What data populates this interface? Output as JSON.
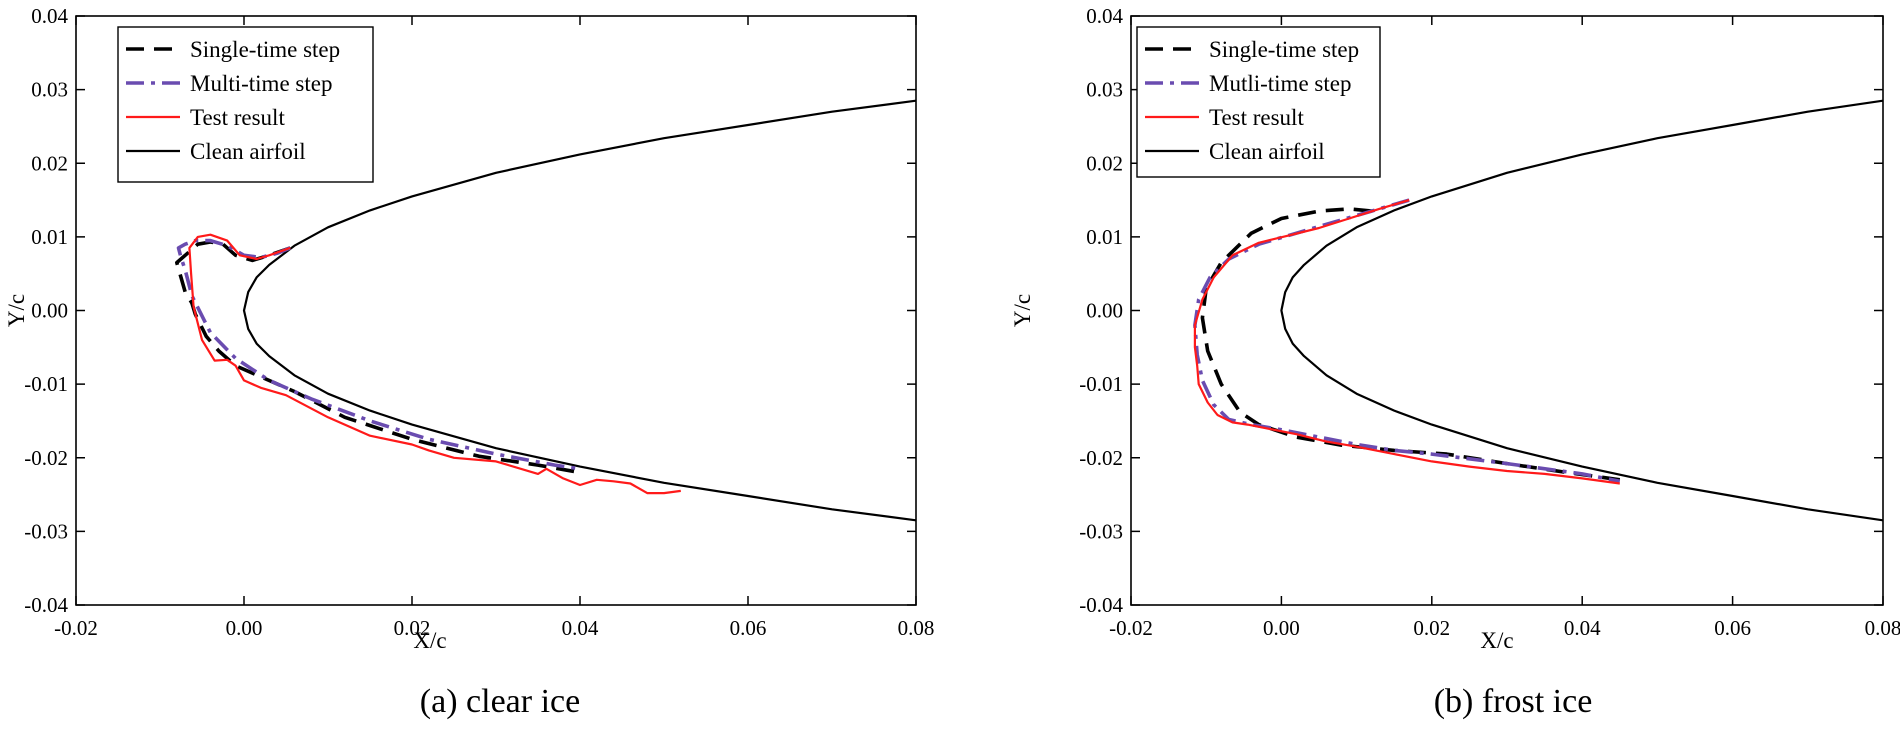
{
  "chart_data": [
    {
      "type": "line",
      "caption": "(a) clear ice",
      "xlabel": "X/c",
      "ylabel": "Y/c",
      "xlim": [
        -0.02,
        0.08
      ],
      "ylim": [
        -0.04,
        0.04
      ],
      "xticks": [
        -0.02,
        0.0,
        0.02,
        0.04,
        0.06,
        0.08
      ],
      "xtick_labels": [
        "-0.02",
        "0.00",
        "0.02",
        "0.04",
        "0.06",
        "0.08"
      ],
      "yticks": [
        0.04,
        0.03,
        0.02,
        0.01,
        0.0,
        -0.01,
        -0.02,
        -0.03,
        -0.04
      ],
      "ytick_labels": [
        "0.04",
        "0.03",
        "0.02",
        "0.01",
        "0.00",
        "-0.01",
        "-0.02",
        "-0.03",
        "-0.04"
      ],
      "legend_position": "top-left",
      "series": [
        {
          "name": "Single-time step",
          "style": "dash",
          "color": "#000000",
          "x": [
            0.0055,
            0.003,
            0.001,
            -0.001,
            -0.0025,
            -0.004,
            -0.0055,
            -0.007,
            -0.008,
            -0.0075,
            -0.007,
            -0.0062,
            -0.0058,
            -0.0045,
            -0.003,
            -0.001,
            0.002,
            0.006,
            0.012,
            0.02,
            0.028,
            0.035,
            0.04
          ],
          "y": [
            0.0085,
            0.0075,
            0.0068,
            0.0075,
            0.009,
            0.0093,
            0.009,
            0.0075,
            0.0065,
            0.0045,
            0.0025,
            0.001,
            -0.0005,
            -0.0035,
            -0.0055,
            -0.0075,
            -0.009,
            -0.011,
            -0.0145,
            -0.0175,
            -0.0198,
            -0.021,
            -0.022
          ]
        },
        {
          "name": "Multi-time step",
          "style": "dash-dot",
          "color": "#6a4cb0",
          "x": [
            0.0055,
            0.004,
            0.002,
            0.0,
            -0.002,
            -0.004,
            -0.0058,
            -0.007,
            -0.0078,
            -0.0075,
            -0.007,
            -0.0062,
            -0.004,
            -0.001,
            0.003,
            0.008,
            0.015,
            0.022,
            0.03,
            0.037,
            0.04
          ],
          "y": [
            0.0085,
            0.0078,
            0.0072,
            0.0075,
            0.0088,
            0.0095,
            0.0095,
            0.009,
            0.0085,
            0.0072,
            0.0055,
            0.002,
            -0.003,
            -0.0065,
            -0.0095,
            -0.012,
            -0.015,
            -0.0175,
            -0.0195,
            -0.021,
            -0.0215
          ]
        },
        {
          "name": "Test result",
          "style": "solid",
          "color": "#ff1a1a",
          "x": [
            0.0055,
            0.003,
            0.0015,
            -0.0005,
            -0.002,
            -0.004,
            -0.0055,
            -0.0065,
            -0.0063,
            -0.006,
            -0.005,
            -0.0035,
            -0.002,
            -0.001,
            0.0,
            0.002,
            0.005,
            0.01,
            0.015,
            0.02,
            0.022,
            0.025,
            0.03,
            0.035,
            0.036,
            0.038,
            0.04,
            0.042,
            0.044,
            0.046,
            0.048,
            0.05,
            0.052
          ],
          "y": [
            0.0085,
            0.0075,
            0.007,
            0.0075,
            0.0095,
            0.0103,
            0.01,
            0.0085,
            0.005,
            0.0005,
            -0.004,
            -0.0068,
            -0.0067,
            -0.0075,
            -0.0095,
            -0.0105,
            -0.0115,
            -0.0145,
            -0.017,
            -0.0182,
            -0.019,
            -0.02,
            -0.0205,
            -0.0222,
            -0.0215,
            -0.0228,
            -0.0237,
            -0.023,
            -0.0232,
            -0.0235,
            -0.0248,
            -0.0248,
            -0.0245
          ]
        },
        {
          "name": "Clean airfoil",
          "style": "solid",
          "color": "#000000",
          "x": [
            0.08,
            0.07,
            0.06,
            0.05,
            0.04,
            0.03,
            0.02,
            0.015,
            0.01,
            0.006,
            0.003,
            0.0015,
            0.0005,
            0.0,
            0.0005,
            0.0015,
            0.003,
            0.006,
            0.01,
            0.015,
            0.02,
            0.03,
            0.04,
            0.05,
            0.06,
            0.07,
            0.08
          ],
          "y": [
            0.0285,
            0.027,
            0.0252,
            0.0234,
            0.0212,
            0.0187,
            0.0155,
            0.0136,
            0.0113,
            0.0088,
            0.0062,
            0.0045,
            0.0025,
            0.0,
            -0.0025,
            -0.0045,
            -0.0062,
            -0.0088,
            -0.0113,
            -0.0136,
            -0.0155,
            -0.0187,
            -0.0212,
            -0.0234,
            -0.0252,
            -0.027,
            -0.0285
          ]
        }
      ]
    },
    {
      "type": "line",
      "caption": "(b) frost ice",
      "xlabel": "X/c",
      "ylabel": "Y/c",
      "xlim": [
        -0.02,
        0.08
      ],
      "ylim": [
        -0.04,
        0.04
      ],
      "xticks": [
        -0.02,
        0.0,
        0.02,
        0.04,
        0.06,
        0.08
      ],
      "xtick_labels": [
        "-0.02",
        "0.00",
        "0.02",
        "0.04",
        "0.06",
        "0.08"
      ],
      "yticks": [
        0.04,
        0.03,
        0.02,
        0.01,
        0.0,
        -0.01,
        -0.02,
        -0.03,
        -0.04
      ],
      "ytick_labels": [
        "0.04",
        "0.03",
        "0.02",
        "0.01",
        "0.00",
        "-0.01",
        "-0.02",
        "-0.03",
        "-0.04"
      ],
      "legend_position": "top-left",
      "series": [
        {
          "name": "Single-time step",
          "style": "dash",
          "color": "#000000",
          "x": [
            0.012,
            0.009,
            0.005,
            0.0,
            -0.004,
            -0.008,
            -0.01,
            -0.0105,
            -0.0098,
            -0.008,
            -0.0055,
            -0.003,
            0.002,
            0.008,
            0.015,
            0.022,
            0.03,
            0.038,
            0.045
          ],
          "y": [
            0.0135,
            0.0138,
            0.0135,
            0.0125,
            0.0105,
            0.0065,
            0.003,
            -0.001,
            -0.0055,
            -0.01,
            -0.0138,
            -0.0155,
            -0.0172,
            -0.0183,
            -0.019,
            -0.0195,
            -0.0208,
            -0.022,
            -0.023
          ]
        },
        {
          "name": "Mutli-time step",
          "style": "dash-dot",
          "color": "#6a4cb0",
          "x": [
            0.017,
            0.012,
            0.007,
            0.002,
            -0.003,
            -0.007,
            -0.0095,
            -0.011,
            -0.0115,
            -0.0112,
            -0.0105,
            -0.009,
            -0.007,
            -0.004,
            0.0,
            0.005,
            0.01,
            0.015,
            0.02,
            0.03,
            0.04,
            0.045
          ],
          "y": [
            0.015,
            0.0135,
            0.012,
            0.0105,
            0.009,
            0.007,
            0.0045,
            0.0015,
            -0.002,
            -0.006,
            -0.0095,
            -0.0128,
            -0.0148,
            -0.0155,
            -0.0162,
            -0.0172,
            -0.0182,
            -0.019,
            -0.0195,
            -0.0208,
            -0.0222,
            -0.0232
          ]
        },
        {
          "name": "Test result",
          "style": "solid",
          "color": "#ff1a1a",
          "x": [
            0.017,
            0.013,
            0.009,
            0.005,
            0.001,
            -0.003,
            -0.0065,
            -0.009,
            -0.0105,
            -0.0115,
            -0.0115,
            -0.0112,
            -0.011,
            -0.0098,
            -0.0085,
            -0.0065,
            -0.0045,
            -0.002,
            0.002,
            0.006,
            0.01,
            0.015,
            0.02,
            0.025,
            0.03,
            0.035,
            0.04,
            0.045
          ],
          "y": [
            0.015,
            0.0138,
            0.0125,
            0.0112,
            0.0102,
            0.0092,
            0.0075,
            0.0045,
            0.0015,
            -0.002,
            -0.005,
            -0.0075,
            -0.01,
            -0.0125,
            -0.0142,
            -0.0152,
            -0.0155,
            -0.016,
            -0.0168,
            -0.0178,
            -0.0185,
            -0.0195,
            -0.0205,
            -0.0212,
            -0.0218,
            -0.0222,
            -0.0228,
            -0.0235
          ]
        },
        {
          "name": "Clean airfoil",
          "style": "solid",
          "color": "#000000",
          "x": [
            0.08,
            0.07,
            0.06,
            0.05,
            0.04,
            0.03,
            0.02,
            0.015,
            0.01,
            0.006,
            0.003,
            0.0015,
            0.0005,
            0.0,
            0.0005,
            0.0015,
            0.003,
            0.006,
            0.01,
            0.015,
            0.02,
            0.03,
            0.04,
            0.05,
            0.06,
            0.07,
            0.08
          ],
          "y": [
            0.0285,
            0.027,
            0.0252,
            0.0234,
            0.0212,
            0.0187,
            0.0155,
            0.0136,
            0.0113,
            0.0088,
            0.0062,
            0.0045,
            0.0025,
            0.0,
            -0.0025,
            -0.0045,
            -0.0062,
            -0.0088,
            -0.0113,
            -0.0136,
            -0.0155,
            -0.0187,
            -0.0212,
            -0.0234,
            -0.0252,
            -0.027,
            -0.0285
          ]
        }
      ]
    }
  ]
}
